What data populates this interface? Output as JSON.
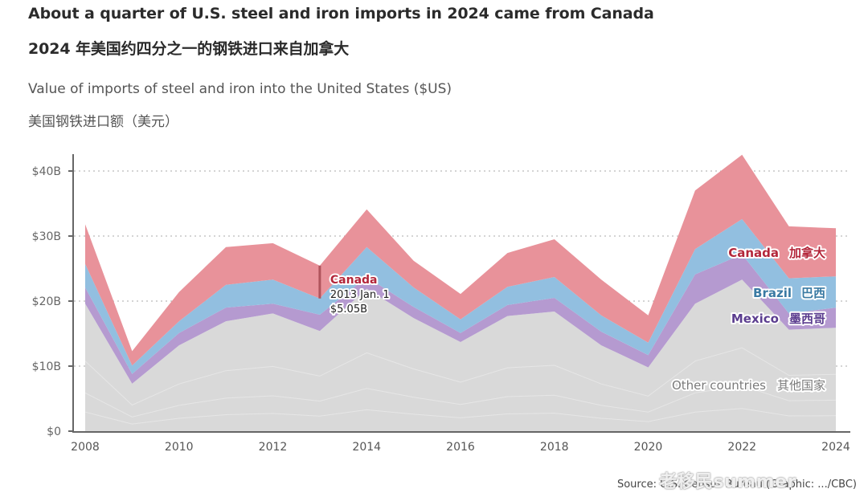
{
  "header": {
    "title_en": "About a quarter of U.S. steel and iron imports in 2024 came from Canada",
    "title_zh": "2024 年美国约四分之一的钢铁进口来自加拿大",
    "subtitle_en": "Value of imports of steel and iron into the United States ($US)",
    "subtitle_zh": "美国钢铁进口额（美元）"
  },
  "footer": {
    "source": "Source: U.S. Census Bureau (Graphic: .../CBC)",
    "watermark": "老移民summer"
  },
  "chart_data": {
    "type": "area",
    "stacked": true,
    "title": "Value of imports of steel and iron into the United States ($US)",
    "xlabel": "",
    "ylabel": "",
    "x": [
      2008,
      2009,
      2010,
      2011,
      2012,
      2013,
      2014,
      2015,
      2016,
      2017,
      2018,
      2019,
      2020,
      2021,
      2022,
      2023,
      2024
    ],
    "x_tick_labels": [
      "2008",
      "2010",
      "2012",
      "2014",
      "2016",
      "2018",
      "2020",
      "2022",
      "2024"
    ],
    "x_ticks": [
      2008,
      2010,
      2012,
      2014,
      2016,
      2018,
      2020,
      2022,
      2024
    ],
    "xlim": [
      2008,
      2024
    ],
    "ylim": [
      0,
      42.5
    ],
    "y_ticks": [
      0,
      10,
      20,
      30,
      40
    ],
    "y_tick_labels": [
      "$0",
      "$10B",
      "$20B",
      "$30B",
      "$40B"
    ],
    "grid": "horizontal dotted",
    "units": "billions USD",
    "series": [
      {
        "name": "Other countries",
        "label_zh": "其他国家",
        "color": "#d9d9d9",
        "label_color": "#7a7a7a",
        "values": [
          19.6,
          7.3,
          13.2,
          16.9,
          18.1,
          15.4,
          21.9,
          17.4,
          13.7,
          17.7,
          18.4,
          13.2,
          9.8,
          19.6,
          23.3,
          15.6,
          15.9
        ]
      },
      {
        "name": "Mexico",
        "label_zh": "墨西哥",
        "color": "#b59ad0",
        "label_color": "#5b3d8f",
        "values": [
          2.5,
          1.5,
          1.9,
          2.1,
          1.5,
          2.5,
          1.8,
          1.7,
          1.4,
          1.7,
          2.1,
          2.1,
          1.9,
          4.5,
          3.9,
          2.5,
          3.1
        ]
      },
      {
        "name": "Brazil",
        "label_zh": "巴西",
        "color": "#92bfe0",
        "label_color": "#3a7aa3",
        "values": [
          3.6,
          1.3,
          1.8,
          3.5,
          3.7,
          2.5,
          4.6,
          3.0,
          2.1,
          2.8,
          3.2,
          2.5,
          1.9,
          3.9,
          5.4,
          5.4,
          4.8
        ]
      },
      {
        "name": "Canada",
        "label_zh": "加拿大",
        "color": "#e8929a",
        "label_color": "#b3263a",
        "values": [
          6.1,
          2.2,
          4.5,
          5.8,
          5.6,
          5.05,
          5.8,
          4.1,
          3.9,
          5.2,
          5.8,
          5.5,
          4.2,
          9.0,
          9.9,
          8.0,
          7.4
        ]
      }
    ],
    "annotation": {
      "series": "Canada",
      "date": "2013 Jan. 1",
      "value": "$5.05B",
      "x": 2013,
      "color": "#b3263a"
    },
    "legend": "inline labels on right side"
  }
}
